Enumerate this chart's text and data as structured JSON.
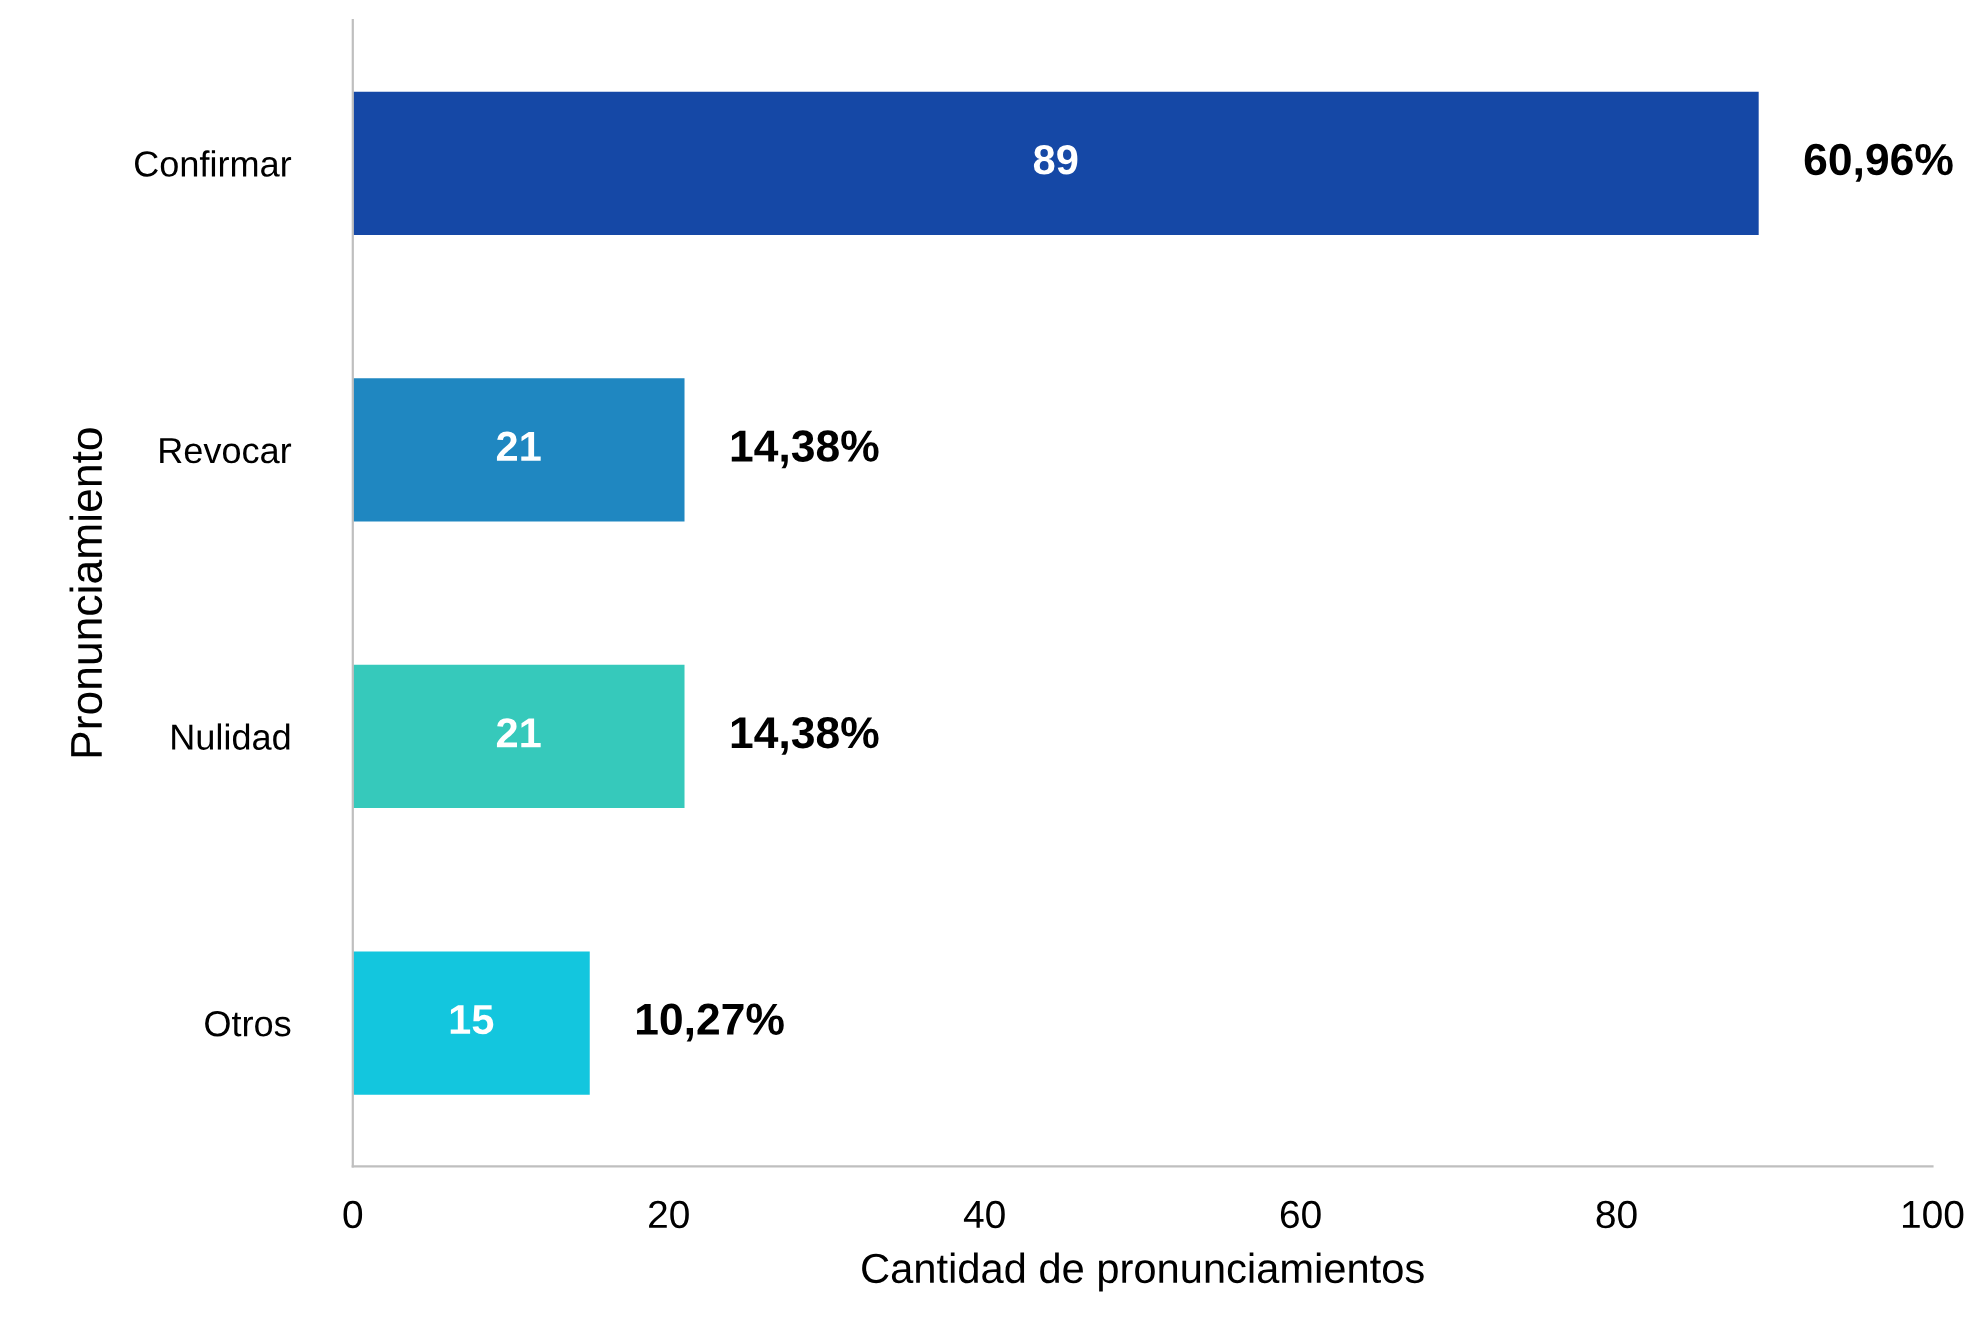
{
  "chart_data": {
    "type": "bar",
    "orientation": "horizontal",
    "categories": [
      "Confirmar",
      "Revocar",
      "Nulidad",
      "Otros"
    ],
    "values": [
      89,
      21,
      21,
      15
    ],
    "colors": [
      "#1548a6",
      "#1f87c1",
      "#36c9bb",
      "#13c6de"
    ],
    "data_labels": true,
    "annotations": [
      {
        "text": "60,96%",
        "x": 89,
        "y": "Confirmar"
      },
      {
        "text": "14,38%",
        "x": 21,
        "y": "Revocar"
      },
      {
        "text": "14,38%",
        "x": 21,
        "y": "Nulidad"
      },
      {
        "text": "10,27%",
        "x": 15,
        "y": "Otros"
      }
    ],
    "xlabel": "Cantidad de pronunciamientos",
    "ylabel": "Pronunciamiento",
    "xlim": [
      0,
      100
    ],
    "xticks": [
      0,
      20,
      40,
      60,
      80,
      100
    ],
    "grid": false,
    "legend": false
  }
}
